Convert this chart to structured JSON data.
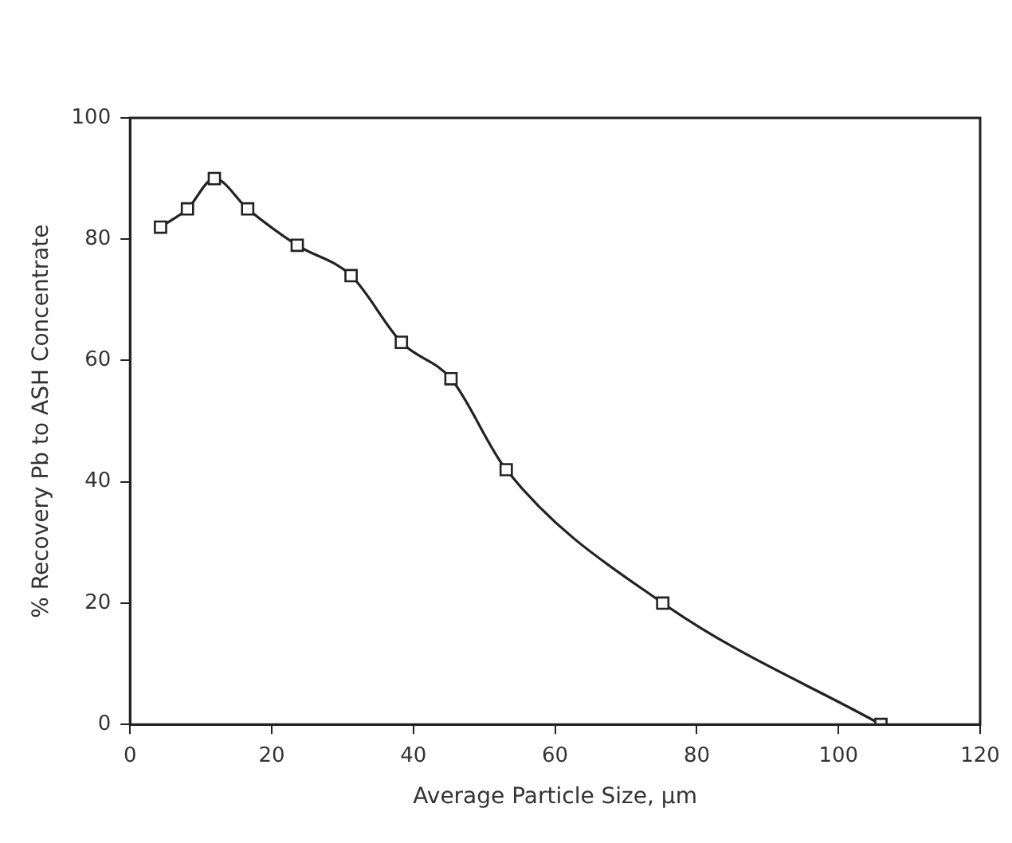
{
  "chart_data": {
    "type": "line",
    "xlabel": "Average Particle Size, μm",
    "ylabel": "% Recovery Pb to ASH Concentrate",
    "x": [
      4.3,
      8.1,
      11.9,
      16.6,
      23.6,
      31.2,
      38.3,
      45.3,
      53.1,
      75.2,
      106
    ],
    "series": [
      {
        "color": "#222222",
        "values": [
          82,
          85,
          90,
          85,
          79,
          74,
          63,
          57,
          42,
          20,
          0
        ]
      }
    ],
    "xlim": [
      0,
      120
    ],
    "xticks": [
      0,
      20,
      40,
      60,
      80,
      100,
      120
    ],
    "ylim": [
      0,
      100
    ],
    "yticks": [
      0,
      20,
      40,
      60,
      80,
      100
    ],
    "grid": false,
    "legend": false,
    "marker": "square",
    "line_style": "solid"
  }
}
